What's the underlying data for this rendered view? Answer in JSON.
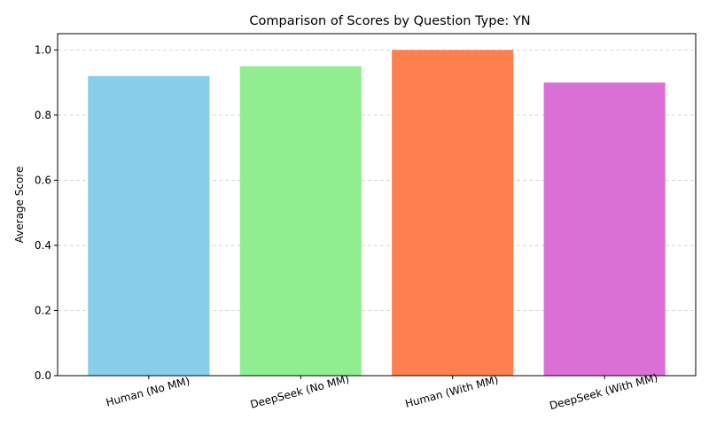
{
  "chart_data": {
    "type": "bar",
    "title": "Comparison of Scores by Question Type: YN",
    "xlabel": "",
    "ylabel": "Average Score",
    "categories": [
      "Human (No MM)",
      "DeepSeek (No MM)",
      "Human (With MM)",
      "DeepSeek (With MM)"
    ],
    "values": [
      0.92,
      0.95,
      1.0,
      0.9
    ],
    "colors": [
      "#87CEEB",
      "#90EE90",
      "#FF7F50",
      "#DA70D6"
    ],
    "ylim": [
      0,
      1.05
    ],
    "yticks": [
      0.0,
      0.2,
      0.4,
      0.6,
      0.8,
      1.0
    ],
    "ytick_labels": [
      "0.0",
      "0.2",
      "0.4",
      "0.6",
      "0.8",
      "1.0"
    ],
    "grid": "y-dashed",
    "legend": "none"
  }
}
